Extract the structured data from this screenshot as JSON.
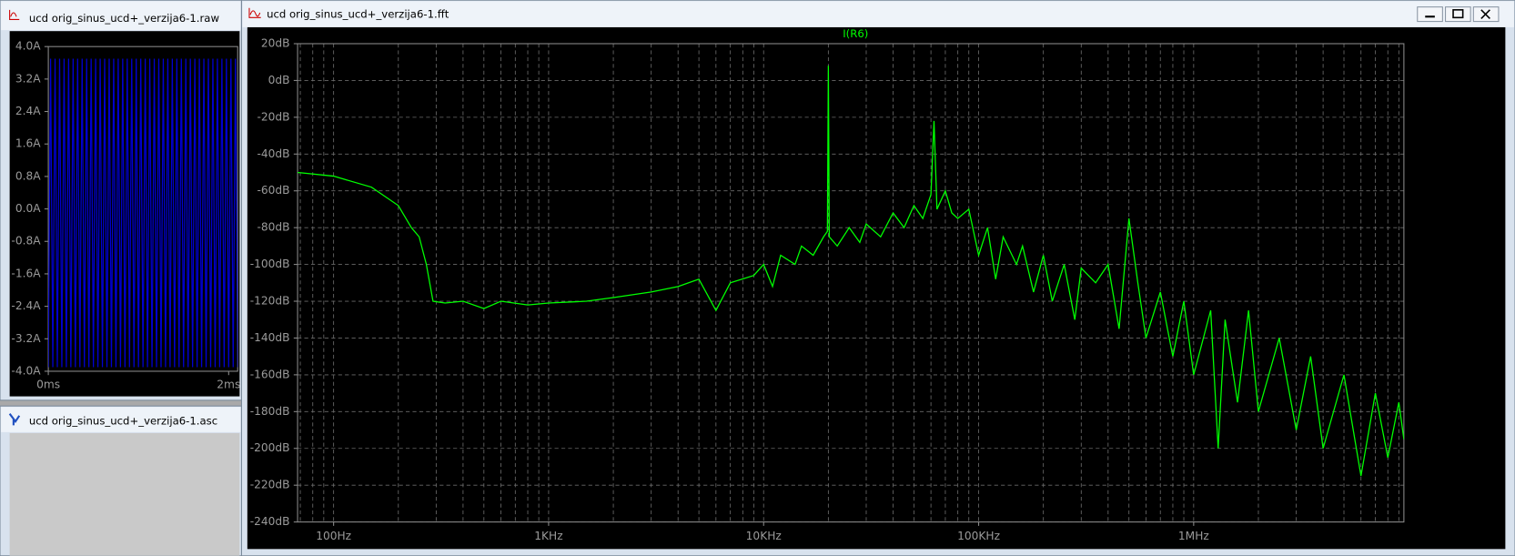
{
  "windows": [
    {
      "title": "ucd orig_sinus_ucd+_verzija6-1.raw"
    },
    {
      "title": "ucd orig_sinus_ucd+_verzija6-1.asc"
    },
    {
      "title": "ucd orig_sinus_ucd+_verzija6-1.fft"
    }
  ],
  "chart_data": [
    {
      "type": "line",
      "x": [
        0,
        0.025,
        0.05,
        0.075,
        0.1,
        0.125,
        0.15,
        0.175,
        0.2,
        0.225,
        0.25,
        0.275,
        0.3,
        0.325,
        0.35,
        0.375,
        0.4,
        0.425,
        0.45,
        0.475,
        0.5,
        0.525,
        0.55,
        0.575,
        0.6,
        0.625,
        0.65,
        0.675,
        0.7,
        0.725,
        0.75,
        0.775,
        0.8,
        0.825,
        0.85,
        0.875,
        0.9,
        0.925,
        0.95,
        0.975,
        1,
        1.025,
        1.05,
        1.075,
        1.1,
        1.125,
        1.15,
        1.175,
        1.2,
        1.225,
        1.25,
        1.275,
        1.3,
        1.325,
        1.35,
        1.375,
        1.4,
        1.425,
        1.45,
        1.475,
        1.5,
        1.525,
        1.55,
        1.575,
        1.6,
        1.625,
        1.65,
        1.675,
        1.7,
        1.725,
        1.75,
        1.775,
        1.8,
        1.825,
        1.85,
        1.875,
        1.9,
        1.925,
        1.95,
        1.975,
        2,
        2.025,
        2.05,
        2.075,
        2.1
      ],
      "series": [
        {
          "color": "#0000d0",
          "values": [
            -3.9,
            3.7,
            -3.9,
            3.7,
            -3.9,
            3.7,
            -3.9,
            3.7,
            -3.9,
            3.7,
            -3.9,
            3.7,
            -3.9,
            3.7,
            -3.9,
            3.7,
            -3.9,
            3.7,
            -3.9,
            3.7,
            -3.9,
            3.7,
            -3.9,
            3.7,
            -3.9,
            3.7,
            -3.9,
            3.7,
            -3.9,
            3.7,
            -3.9,
            3.7,
            -3.9,
            3.7,
            -3.9,
            3.7,
            -3.9,
            3.7,
            -3.9,
            3.7,
            -3.9,
            3.7,
            -3.9,
            3.7,
            -3.9,
            3.7,
            -3.9,
            3.7,
            -3.9,
            3.7,
            -3.9,
            3.7,
            -3.9,
            3.7,
            -3.9,
            3.7,
            -3.9,
            3.7,
            -3.9,
            3.7,
            -3.9,
            3.7,
            -3.9,
            3.7,
            -3.9,
            3.7,
            -3.9,
            3.7,
            -3.9,
            3.7,
            -3.9,
            3.7,
            -3.9,
            3.7,
            -3.9,
            3.7,
            -3.9,
            3.7,
            -3.9,
            3.7,
            -3.9,
            3.7,
            -3.9,
            3.7,
            -3.9
          ]
        }
      ],
      "xlim": [
        0,
        2.1
      ],
      "xticks": [
        {
          "value": 0,
          "label": "0ms"
        },
        {
          "value": 2,
          "label": "2ms"
        }
      ],
      "ylim": [
        -4,
        4
      ],
      "yticks": [
        {
          "value": 4,
          "label": "4.0A"
        },
        {
          "value": 3.2,
          "label": "3.2A"
        },
        {
          "value": 2.4,
          "label": "2.4A"
        },
        {
          "value": 1.6,
          "label": "1.6A"
        },
        {
          "value": 0.8,
          "label": "0.8A"
        },
        {
          "value": 0,
          "label": "0.0A"
        },
        {
          "value": -0.8,
          "label": "-0.8A"
        },
        {
          "value": -1.6,
          "label": "-1.6A"
        },
        {
          "value": -2.4,
          "label": "-2.4A"
        },
        {
          "value": -3.2,
          "label": "-3.2A"
        },
        {
          "value": -4,
          "label": "-4.0A"
        }
      ],
      "grid": false
    },
    {
      "type": "line",
      "title": "I(R6)",
      "xscale": "log",
      "x": [
        68,
        100,
        150,
        200,
        230,
        250,
        270,
        290,
        330,
        400,
        500,
        600,
        800,
        1000,
        1500,
        2000,
        3000,
        4000,
        5000,
        6000,
        7000,
        9000,
        10000,
        11000,
        12000,
        14000,
        15000,
        17000,
        19000,
        19800,
        20000,
        20200,
        22000,
        25000,
        28000,
        30000,
        35000,
        40000,
        45000,
        50000,
        55000,
        60000,
        62000,
        64000,
        70000,
        75000,
        80000,
        90000,
        100000,
        110000,
        120000,
        130000,
        150000,
        160000,
        180000,
        200000,
        220000,
        250000,
        280000,
        300000,
        350000,
        400000,
        450000,
        500000,
        550000,
        600000,
        700000,
        800000,
        900000,
        1000000,
        1200000,
        1300000,
        1400000,
        1600000,
        1800000,
        2000000,
        2500000,
        3000000,
        3500000,
        4000000,
        5000000,
        6000000,
        7000000,
        8000000,
        9000000,
        9500000
      ],
      "series": [
        {
          "name": "I(R6)",
          "color": "#00ff00",
          "values": [
            -50,
            -52,
            -58,
            -68,
            -80,
            -85,
            -100,
            -120,
            -121,
            -120,
            -124,
            -120,
            -122,
            -121,
            -120,
            -118,
            -115,
            -112,
            -108,
            -125,
            -110,
            -106,
            -100,
            -112,
            -95,
            -100,
            -90,
            -95,
            -85,
            -82,
            8,
            -85,
            -90,
            -80,
            -88,
            -78,
            -85,
            -72,
            -80,
            -68,
            -75,
            -62,
            -22,
            -70,
            -60,
            -72,
            -75,
            -70,
            -95,
            -80,
            -108,
            -85,
            -100,
            -90,
            -115,
            -95,
            -120,
            -100,
            -130,
            -102,
            -110,
            -100,
            -135,
            -75,
            -110,
            -140,
            -115,
            -150,
            -120,
            -160,
            -125,
            -200,
            -130,
            -175,
            -125,
            -180,
            -140,
            -190,
            -150,
            -200,
            -160,
            -215,
            -170,
            -205,
            -175,
            -195
          ]
        }
      ],
      "xlim": [
        68,
        9500000
      ],
      "xticks": [
        {
          "value": 100,
          "label": "100Hz"
        },
        {
          "value": 1000,
          "label": "1KHz"
        },
        {
          "value": 10000,
          "label": "10KHz"
        },
        {
          "value": 100000,
          "label": "100KHz"
        },
        {
          "value": 1000000,
          "label": "1MHz"
        }
      ],
      "minor_xticks": [
        70,
        80,
        90,
        200,
        300,
        400,
        500,
        600,
        700,
        800,
        900,
        2000,
        3000,
        4000,
        5000,
        6000,
        7000,
        8000,
        9000,
        20000,
        30000,
        40000,
        50000,
        60000,
        70000,
        80000,
        90000,
        200000,
        300000,
        400000,
        500000,
        600000,
        700000,
        800000,
        900000,
        2000000,
        3000000,
        4000000,
        5000000,
        6000000,
        7000000,
        8000000,
        9000000
      ],
      "ylim": [
        -240,
        20
      ],
      "yticks": [
        {
          "value": 20,
          "label": "20dB"
        },
        {
          "value": 0,
          "label": "0dB"
        },
        {
          "value": -20,
          "label": "-20dB"
        },
        {
          "value": -40,
          "label": "-40dB"
        },
        {
          "value": -60,
          "label": "-60dB"
        },
        {
          "value": -80,
          "label": "-80dB"
        },
        {
          "value": -100,
          "label": "-100dB"
        },
        {
          "value": -120,
          "label": "-120dB"
        },
        {
          "value": -140,
          "label": "-140dB"
        },
        {
          "value": -160,
          "label": "-160dB"
        },
        {
          "value": -180,
          "label": "-180dB"
        },
        {
          "value": -200,
          "label": "-200dB"
        },
        {
          "value": -220,
          "label": "-220dB"
        },
        {
          "value": -240,
          "label": "-240dB"
        }
      ],
      "grid": true
    }
  ]
}
